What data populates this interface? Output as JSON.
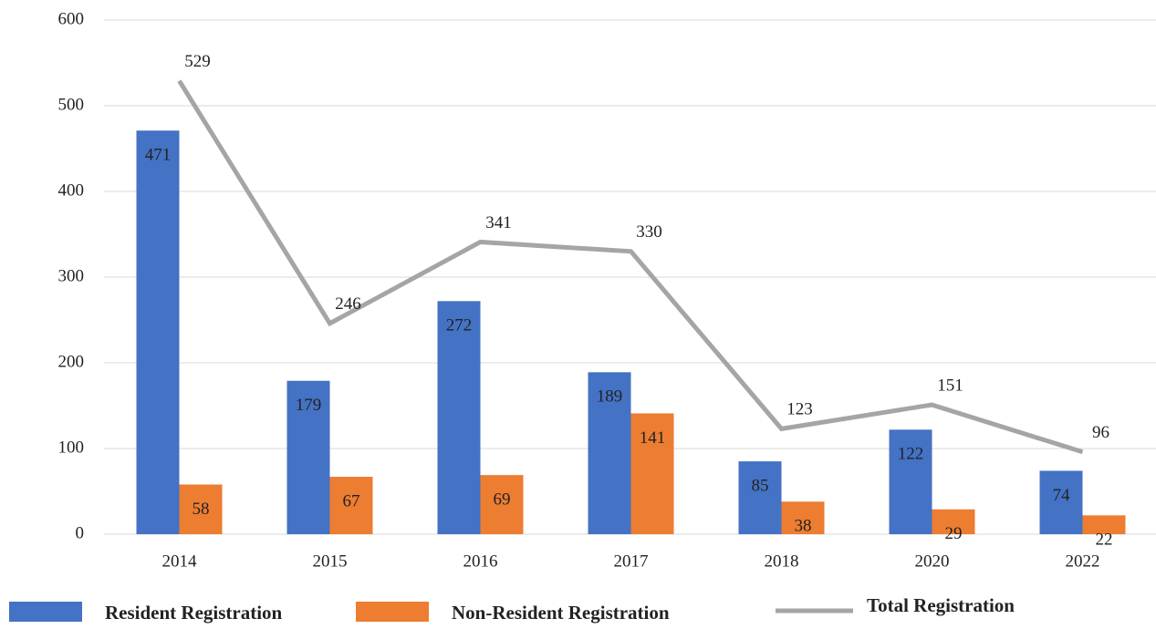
{
  "chart_data": {
    "type": "bar",
    "categories": [
      "2014",
      "2015",
      "2016",
      "2017",
      "2018",
      "2020",
      "2022"
    ],
    "series": [
      {
        "name": "Resident Registration",
        "color": "#4472c4",
        "type": "bar",
        "values": [
          471,
          179,
          272,
          189,
          85,
          122,
          74
        ]
      },
      {
        "name": "Non-Resident Registration",
        "color": "#ed7d31",
        "type": "bar",
        "values": [
          58,
          67,
          69,
          141,
          38,
          29,
          22
        ]
      },
      {
        "name": "Total Registration",
        "color": "#a5a5a5",
        "type": "line",
        "values": [
          529,
          246,
          341,
          330,
          123,
          151,
          96
        ]
      }
    ],
    "ylim": [
      0,
      600
    ],
    "yticks": [
      0,
      100,
      200,
      300,
      400,
      500,
      600
    ],
    "grid": true,
    "legend": "bottom"
  }
}
